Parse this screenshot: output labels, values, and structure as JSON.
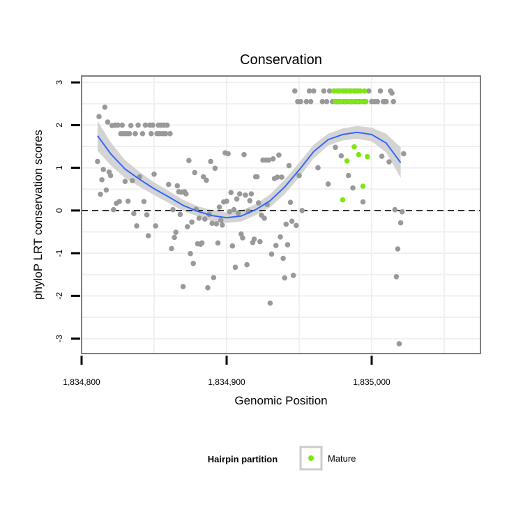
{
  "chart_data": {
    "type": "scatter",
    "title": "Conservation",
    "xlabel": "Genomic Position",
    "ylabel": "phyloP LRT conservation scores",
    "xlim": [
      1834800,
      1835075
    ],
    "ylim": [
      -3.35,
      3.15
    ],
    "x_ticks": [
      {
        "value": 1834800,
        "label": "1,834,800"
      },
      {
        "value": 1834900,
        "label": "1,834,900"
      },
      {
        "value": 1835000,
        "label": "1,835,000"
      }
    ],
    "y_ticks": [
      {
        "value": -3,
        "label": "-3"
      },
      {
        "value": -2,
        "label": "-2"
      },
      {
        "value": -1,
        "label": "-1"
      },
      {
        "value": 0,
        "label": "0"
      },
      {
        "value": 1,
        "label": "1"
      },
      {
        "value": 2,
        "label": "2"
      },
      {
        "value": 3,
        "label": "3"
      }
    ],
    "reference_line": {
      "y": 0,
      "style": "dashed"
    },
    "legend": {
      "title": "Hairpin partition",
      "position": "bottom",
      "entries": [
        {
          "label": "Mature",
          "color": "#7fe516"
        }
      ]
    },
    "colors": {
      "other": "#999999",
      "mature": "#7fe516",
      "smooth": "#3366ff",
      "band": "#cccccc",
      "panel_border": "#7f7f7f",
      "grid": "#f0f0f0"
    },
    "series": [
      {
        "name": "Other",
        "points": [
          [
            1834811,
            1.15
          ],
          [
            1834812,
            2.2
          ],
          [
            1834813,
            0.38
          ],
          [
            1834814,
            0.72
          ],
          [
            1834815,
            0.96
          ],
          [
            1834816,
            2.42
          ],
          [
            1834817,
            0.48
          ],
          [
            1834818,
            2.07
          ],
          [
            1834819,
            0.9
          ],
          [
            1834820,
            0.82
          ],
          [
            1834821,
            1.99
          ],
          [
            1834822,
            0.02
          ],
          [
            1834823,
            2.0
          ],
          [
            1834824,
            0.17
          ],
          [
            1834825,
            2.0
          ],
          [
            1834826,
            0.21
          ],
          [
            1834827,
            1.8
          ],
          [
            1834828,
            2.0
          ],
          [
            1834829,
            1.8
          ],
          [
            1834830,
            0.68
          ],
          [
            1834831,
            1.8
          ],
          [
            1834832,
            0.22
          ],
          [
            1834833,
            1.8
          ],
          [
            1834834,
            1.99
          ],
          [
            1834835,
            0.7
          ],
          [
            1834836,
            -0.07
          ],
          [
            1834837,
            1.8
          ],
          [
            1834838,
            -0.36
          ],
          [
            1834839,
            2.0
          ],
          [
            1834840,
            0.79
          ],
          [
            1834842,
            1.8
          ],
          [
            1834843,
            0.21
          ],
          [
            1834844,
            2.0
          ],
          [
            1834845,
            -0.1
          ],
          [
            1834846,
            -0.59
          ],
          [
            1834847,
            2.0
          ],
          [
            1834848,
            1.8
          ],
          [
            1834849,
            2.0
          ],
          [
            1834850,
            0.85
          ],
          [
            1834851,
            -0.36
          ],
          [
            1834852,
            1.8
          ],
          [
            1834853,
            2.0
          ],
          [
            1834854,
            1.8
          ],
          [
            1834855,
            2.0
          ],
          [
            1834856,
            1.8
          ],
          [
            1834857,
            2.0
          ],
          [
            1834858,
            1.8
          ],
          [
            1834859,
            2.0
          ],
          [
            1834860,
            0.61
          ],
          [
            1834861,
            1.8
          ],
          [
            1834862,
            -0.89
          ],
          [
            1834863,
            0.02
          ],
          [
            1834864,
            -0.63
          ],
          [
            1834865,
            -0.51
          ],
          [
            1834866,
            0.58
          ],
          [
            1834867,
            0.44
          ],
          [
            1834868,
            -0.09
          ],
          [
            1834869,
            0.43
          ],
          [
            1834870,
            -1.78
          ],
          [
            1834871,
            0.44
          ],
          [
            1834872,
            0.39
          ],
          [
            1834873,
            -0.38
          ],
          [
            1834874,
            1.17
          ],
          [
            1834875,
            -1.01
          ],
          [
            1834876,
            -0.27
          ],
          [
            1834877,
            -1.24
          ],
          [
            1834878,
            0.89
          ],
          [
            1834879,
            0.03
          ],
          [
            1834880,
            -0.78
          ],
          [
            1834881,
            -0.18
          ],
          [
            1834882,
            -0.79
          ],
          [
            1834883,
            -0.76
          ],
          [
            1834884,
            0.79
          ],
          [
            1834885,
            -0.2
          ],
          [
            1834886,
            0.71
          ],
          [
            1834887,
            -1.81
          ],
          [
            1834888,
            -0.09
          ],
          [
            1834889,
            1.15
          ],
          [
            1834890,
            -0.3
          ],
          [
            1834891,
            -1.57
          ],
          [
            1834892,
            0.99
          ],
          [
            1834893,
            -0.31
          ],
          [
            1834894,
            -0.76
          ],
          [
            1834895,
            0.08
          ],
          [
            1834896,
            -0.23
          ],
          [
            1834897,
            -0.34
          ],
          [
            1834898,
            0.2
          ],
          [
            1834899,
            1.35
          ],
          [
            1834900,
            0.22
          ],
          [
            1834901,
            1.33
          ],
          [
            1834902,
            -0.03
          ],
          [
            1834903,
            0.42
          ],
          [
            1834904,
            -0.83
          ],
          [
            1834905,
            0.02
          ],
          [
            1834906,
            -1.33
          ],
          [
            1834907,
            0.27
          ],
          [
            1834908,
            -0.06
          ],
          [
            1834909,
            0.39
          ],
          [
            1834910,
            -0.55
          ],
          [
            1834911,
            -0.64
          ],
          [
            1834912,
            1.31
          ],
          [
            1834913,
            0.36
          ],
          [
            1834914,
            -1.27
          ],
          [
            1834915,
            -0.02
          ],
          [
            1834916,
            0.23
          ],
          [
            1834917,
            0.39
          ],
          [
            1834918,
            -0.75
          ],
          [
            1834919,
            -0.67
          ],
          [
            1834920,
            0.79
          ],
          [
            1834921,
            0.79
          ],
          [
            1834922,
            0.18
          ],
          [
            1834923,
            -0.73
          ],
          [
            1834924,
            -0.11
          ],
          [
            1834925,
            1.18
          ],
          [
            1834926,
            -0.18
          ],
          [
            1834927,
            1.18
          ],
          [
            1834928,
            0.14
          ],
          [
            1834929,
            1.18
          ],
          [
            1834930,
            -2.17
          ],
          [
            1834931,
            -1.02
          ],
          [
            1834932,
            1.21
          ],
          [
            1834933,
            0.75
          ],
          [
            1834934,
            -0.82
          ],
          [
            1834935,
            0.78
          ],
          [
            1834936,
            1.3
          ],
          [
            1834937,
            -0.62
          ],
          [
            1834938,
            0.78
          ],
          [
            1834939,
            -1.12
          ],
          [
            1834940,
            -1.58
          ],
          [
            1834941,
            -0.32
          ],
          [
            1834942,
            -0.8
          ],
          [
            1834943,
            1.05
          ],
          [
            1834944,
            0.19
          ],
          [
            1834945,
            -0.25
          ],
          [
            1834946,
            -1.52
          ],
          [
            1834947,
            2.8
          ],
          [
            1834948,
            -0.35
          ],
          [
            1834949,
            2.55
          ],
          [
            1834950,
            0.82
          ],
          [
            1834951,
            2.55
          ],
          [
            1834952,
            0.0
          ],
          [
            1834955,
            2.55
          ],
          [
            1834957,
            2.8
          ],
          [
            1834958,
            2.55
          ],
          [
            1834960,
            2.8
          ],
          [
            1834963,
            1.0
          ],
          [
            1834966,
            2.55
          ],
          [
            1834967,
            2.8
          ],
          [
            1834969,
            2.55
          ],
          [
            1834970,
            0.62
          ],
          [
            1834971,
            2.8
          ],
          [
            1834973,
            2.55
          ],
          [
            1834974,
            2.8
          ],
          [
            1834975,
            1.48
          ],
          [
            1834976,
            2.55
          ],
          [
            1834977,
            2.8
          ],
          [
            1834978,
            2.55
          ],
          [
            1834979,
            1.28
          ],
          [
            1834980,
            2.8
          ],
          [
            1834981,
            2.55
          ],
          [
            1834982,
            2.8
          ],
          [
            1834983,
            2.55
          ],
          [
            1834984,
            0.82
          ],
          [
            1834985,
            2.8
          ],
          [
            1834986,
            2.55
          ],
          [
            1834987,
            0.53
          ],
          [
            1834988,
            2.8
          ],
          [
            1834989,
            2.55
          ],
          [
            1834990,
            2.8
          ],
          [
            1834991,
            2.55
          ],
          [
            1834992,
            2.8
          ],
          [
            1834993,
            2.55
          ],
          [
            1834994,
            0.2
          ],
          [
            1834995,
            2.55
          ],
          [
            1834996,
            2.55
          ],
          [
            1834998,
            2.8
          ],
          [
            1835000,
            2.55
          ],
          [
            1835002,
            2.55
          ],
          [
            1835004,
            2.55
          ],
          [
            1835006,
            2.8
          ],
          [
            1835007,
            1.27
          ],
          [
            1835008,
            2.55
          ],
          [
            1835009,
            2.55
          ],
          [
            1835010,
            2.55
          ],
          [
            1835012,
            1.14
          ],
          [
            1835013,
            2.8
          ],
          [
            1835014,
            2.75
          ],
          [
            1835015,
            2.55
          ],
          [
            1835016,
            0.02
          ],
          [
            1835017,
            -1.55
          ],
          [
            1835018,
            -0.9
          ],
          [
            1835019,
            -3.12
          ],
          [
            1835020,
            -0.29
          ],
          [
            1835021,
            -0.03
          ],
          [
            1835022,
            1.33
          ]
        ]
      },
      {
        "name": "Mature",
        "points": [
          [
            1834974,
            2.8
          ],
          [
            1834975,
            2.55
          ],
          [
            1834976,
            2.8
          ],
          [
            1834977,
            2.55
          ],
          [
            1834978,
            2.8
          ],
          [
            1834979,
            2.55
          ],
          [
            1834980,
            0.25
          ],
          [
            1834981,
            2.8
          ],
          [
            1834982,
            2.55
          ],
          [
            1834983,
            1.16
          ],
          [
            1834984,
            2.8
          ],
          [
            1834985,
            2.55
          ],
          [
            1834986,
            2.8
          ],
          [
            1834987,
            2.55
          ],
          [
            1834988,
            1.49
          ],
          [
            1834989,
            2.8
          ],
          [
            1834990,
            2.55
          ],
          [
            1834991,
            1.31
          ],
          [
            1834992,
            2.8
          ],
          [
            1834993,
            2.55
          ],
          [
            1834994,
            0.57
          ],
          [
            1834995,
            2.8
          ],
          [
            1834996,
            2.55
          ],
          [
            1834997,
            1.26
          ]
        ]
      },
      {
        "name": "Smooth fit",
        "line": [
          [
            1834811,
            1.75
          ],
          [
            1834820,
            1.33
          ],
          [
            1834830,
            0.97
          ],
          [
            1834840,
            0.73
          ],
          [
            1834850,
            0.51
          ],
          [
            1834860,
            0.32
          ],
          [
            1834870,
            0.12
          ],
          [
            1834880,
            -0.02
          ],
          [
            1834890,
            -0.12
          ],
          [
            1834900,
            -0.17
          ],
          [
            1834910,
            -0.13
          ],
          [
            1834920,
            0.02
          ],
          [
            1834930,
            0.23
          ],
          [
            1834940,
            0.55
          ],
          [
            1834950,
            0.95
          ],
          [
            1834960,
            1.38
          ],
          [
            1834970,
            1.66
          ],
          [
            1834980,
            1.78
          ],
          [
            1834990,
            1.83
          ],
          [
            1835000,
            1.78
          ],
          [
            1835010,
            1.58
          ],
          [
            1835020,
            1.12
          ]
        ],
        "band_upper": [
          [
            1834811,
            2.1
          ],
          [
            1834820,
            1.6
          ],
          [
            1834830,
            1.18
          ],
          [
            1834840,
            0.9
          ],
          [
            1834850,
            0.66
          ],
          [
            1834860,
            0.46
          ],
          [
            1834870,
            0.25
          ],
          [
            1834880,
            0.1
          ],
          [
            1834890,
            0.01
          ],
          [
            1834900,
            -0.05
          ],
          [
            1834910,
            0.0
          ],
          [
            1834920,
            0.15
          ],
          [
            1834930,
            0.38
          ],
          [
            1834940,
            0.72
          ],
          [
            1834950,
            1.12
          ],
          [
            1834960,
            1.54
          ],
          [
            1834970,
            1.8
          ],
          [
            1834980,
            1.92
          ],
          [
            1834990,
            1.98
          ],
          [
            1835000,
            1.94
          ],
          [
            1835010,
            1.8
          ],
          [
            1835020,
            1.48
          ]
        ],
        "band_lower": [
          [
            1834811,
            1.4
          ],
          [
            1834820,
            1.06
          ],
          [
            1834830,
            0.76
          ],
          [
            1834840,
            0.56
          ],
          [
            1834850,
            0.36
          ],
          [
            1834860,
            0.18
          ],
          [
            1834870,
            -0.01
          ],
          [
            1834880,
            -0.14
          ],
          [
            1834890,
            -0.25
          ],
          [
            1834900,
            -0.29
          ],
          [
            1834910,
            -0.26
          ],
          [
            1834920,
            -0.11
          ],
          [
            1834930,
            0.08
          ],
          [
            1834940,
            0.38
          ],
          [
            1834950,
            0.78
          ],
          [
            1834960,
            1.22
          ],
          [
            1834970,
            1.52
          ],
          [
            1834980,
            1.64
          ],
          [
            1834990,
            1.68
          ],
          [
            1835000,
            1.62
          ],
          [
            1835010,
            1.36
          ],
          [
            1835020,
            0.76
          ]
        ]
      }
    ]
  }
}
